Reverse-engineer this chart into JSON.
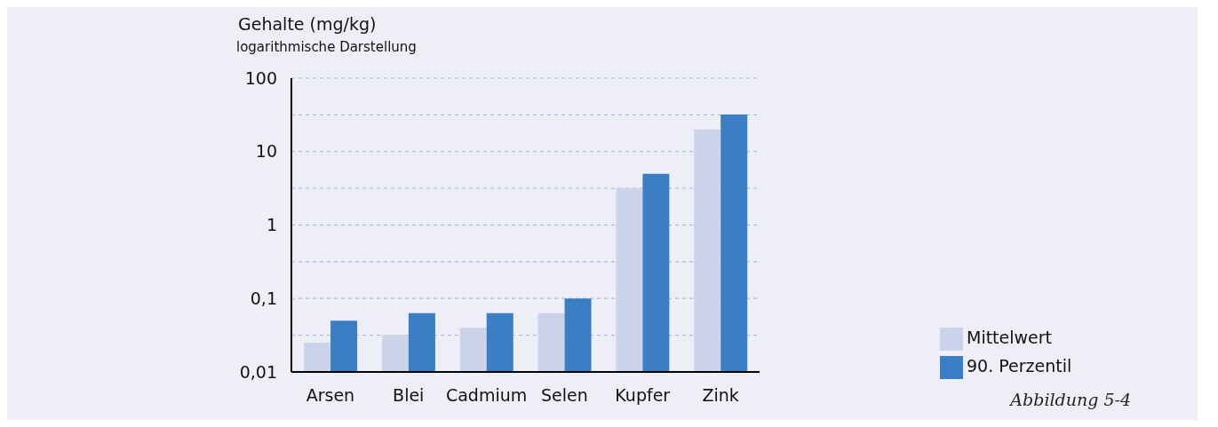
{
  "chart_data": {
    "type": "bar",
    "ylabel": "Gehalte (mg/kg)",
    "subtitle": "logarithmische Darstellung",
    "annotations": [
      "Abbildung 5-4"
    ],
    "categories": [
      "Arsen",
      "Blei",
      "Cadmium",
      "Selen",
      "Kupfer",
      "Zink"
    ],
    "series": [
      {
        "name": "Mittelwert",
        "color": "#cbd4ea",
        "values": [
          0.025,
          0.032,
          0.04,
          0.063,
          3.2,
          20
        ]
      },
      {
        "name": "90. Perzentil",
        "color": "#3a7ec3",
        "values": [
          0.05,
          0.063,
          0.063,
          0.1,
          5,
          32
        ]
      }
    ],
    "log": "y",
    "ylim": [
      0.01,
      100
    ],
    "yticks": [
      {
        "value": 0.01,
        "label": "0,01"
      },
      {
        "value": 0.0316,
        "label": null
      },
      {
        "value": 0.1,
        "label": "0,1"
      },
      {
        "value": 0.316,
        "label": null
      },
      {
        "value": 1,
        "label": "1"
      },
      {
        "value": 3.16,
        "label": null
      },
      {
        "value": 10,
        "label": "10"
      },
      {
        "value": 31.6,
        "label": null
      },
      {
        "value": 100,
        "label": "100"
      }
    ],
    "grid": "y",
    "line_style": "dashed",
    "legend": "bottom right"
  }
}
